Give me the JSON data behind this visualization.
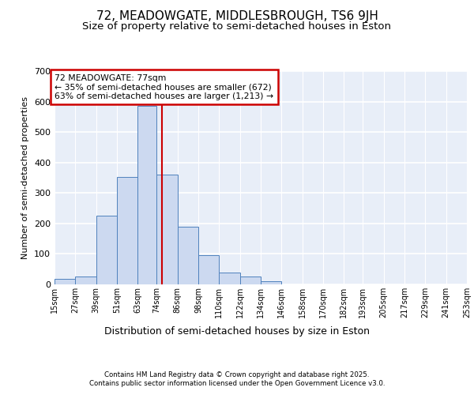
{
  "title": "72, MEADOWGATE, MIDDLESBROUGH, TS6 9JH",
  "subtitle": "Size of property relative to semi-detached houses in Eston",
  "xlabel": "Distribution of semi-detached houses by size in Eston",
  "ylabel": "Number of semi-detached properties",
  "bin_edges": [
    15,
    27,
    39,
    51,
    63,
    74,
    86,
    98,
    110,
    122,
    134,
    146,
    158,
    170,
    182,
    193,
    205,
    217,
    229,
    241,
    253
  ],
  "bar_heights": [
    18,
    26,
    225,
    353,
    585,
    360,
    190,
    97,
    40,
    25,
    10,
    0,
    0,
    0,
    0,
    0,
    0,
    0,
    0,
    0
  ],
  "bar_color": "#ccd9f0",
  "bar_edge_color": "#4f81bd",
  "property_size": 77,
  "property_line_color": "#cc0000",
  "annotation_text": "72 MEADOWGATE: 77sqm\n← 35% of semi-detached houses are smaller (672)\n63% of semi-detached houses are larger (1,213) →",
  "annotation_box_color": "#cc0000",
  "ylim": [
    0,
    700
  ],
  "yticks": [
    0,
    100,
    200,
    300,
    400,
    500,
    600,
    700
  ],
  "background_color": "#e8eef8",
  "grid_color": "#ffffff",
  "footer_line1": "Contains HM Land Registry data © Crown copyright and database right 2025.",
  "footer_line2": "Contains public sector information licensed under the Open Government Licence v3.0.",
  "title_fontsize": 11,
  "subtitle_fontsize": 9.5,
  "tick_label_fontsize": 7,
  "ylabel_fontsize": 8,
  "xlabel_fontsize": 9
}
